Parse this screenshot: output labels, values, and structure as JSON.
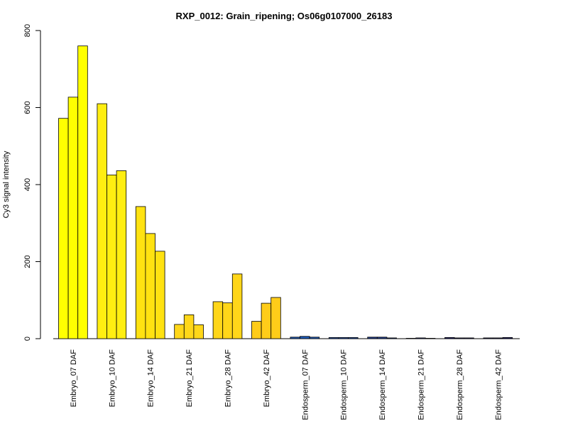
{
  "chart_data": {
    "type": "bar",
    "title": "RXP_0012: Grain_ripening; Os06g0107000_26183",
    "xlabel": "",
    "ylabel": "Cy3 signal intensity",
    "ylim": [
      0,
      800
    ],
    "yticks": [
      0,
      200,
      400,
      600,
      800
    ],
    "categories": [
      "Embryo_07 DAF",
      "Embryo_10 DAF",
      "Embryo_14 DAF",
      "Embryo_21 DAF",
      "Embryo_28 DAF",
      "Embryo_42 DAF",
      "Endosperm_07 DAF",
      "Endosperm_10 DAF",
      "Endosperm_14 DAF",
      "Endosperm_21 DAF",
      "Endosperm_28 DAF",
      "Endosperm_42 DAF"
    ],
    "replicates_per_category": 3,
    "values": [
      [
        572,
        627,
        760
      ],
      [
        610,
        425,
        436
      ],
      [
        343,
        273,
        227
      ],
      [
        37,
        62,
        36
      ],
      [
        96,
        93,
        168
      ],
      [
        45,
        92,
        107
      ],
      [
        4,
        6,
        4
      ],
      [
        3,
        3,
        3
      ],
      [
        4,
        4,
        2
      ],
      [
        1,
        2,
        1
      ],
      [
        3,
        2,
        2
      ],
      [
        2,
        2,
        3
      ]
    ],
    "colors": [
      "#ffff00",
      "#ffee11",
      "#ffe211",
      "#ffd719",
      "#ffd619",
      "#ffcc19",
      "#1e5ab4",
      "#1e4ba0",
      "#1e3c8c",
      "#1e2d78",
      "#1e1e64",
      "#14145a"
    ],
    "grid": false,
    "legend": "none"
  }
}
